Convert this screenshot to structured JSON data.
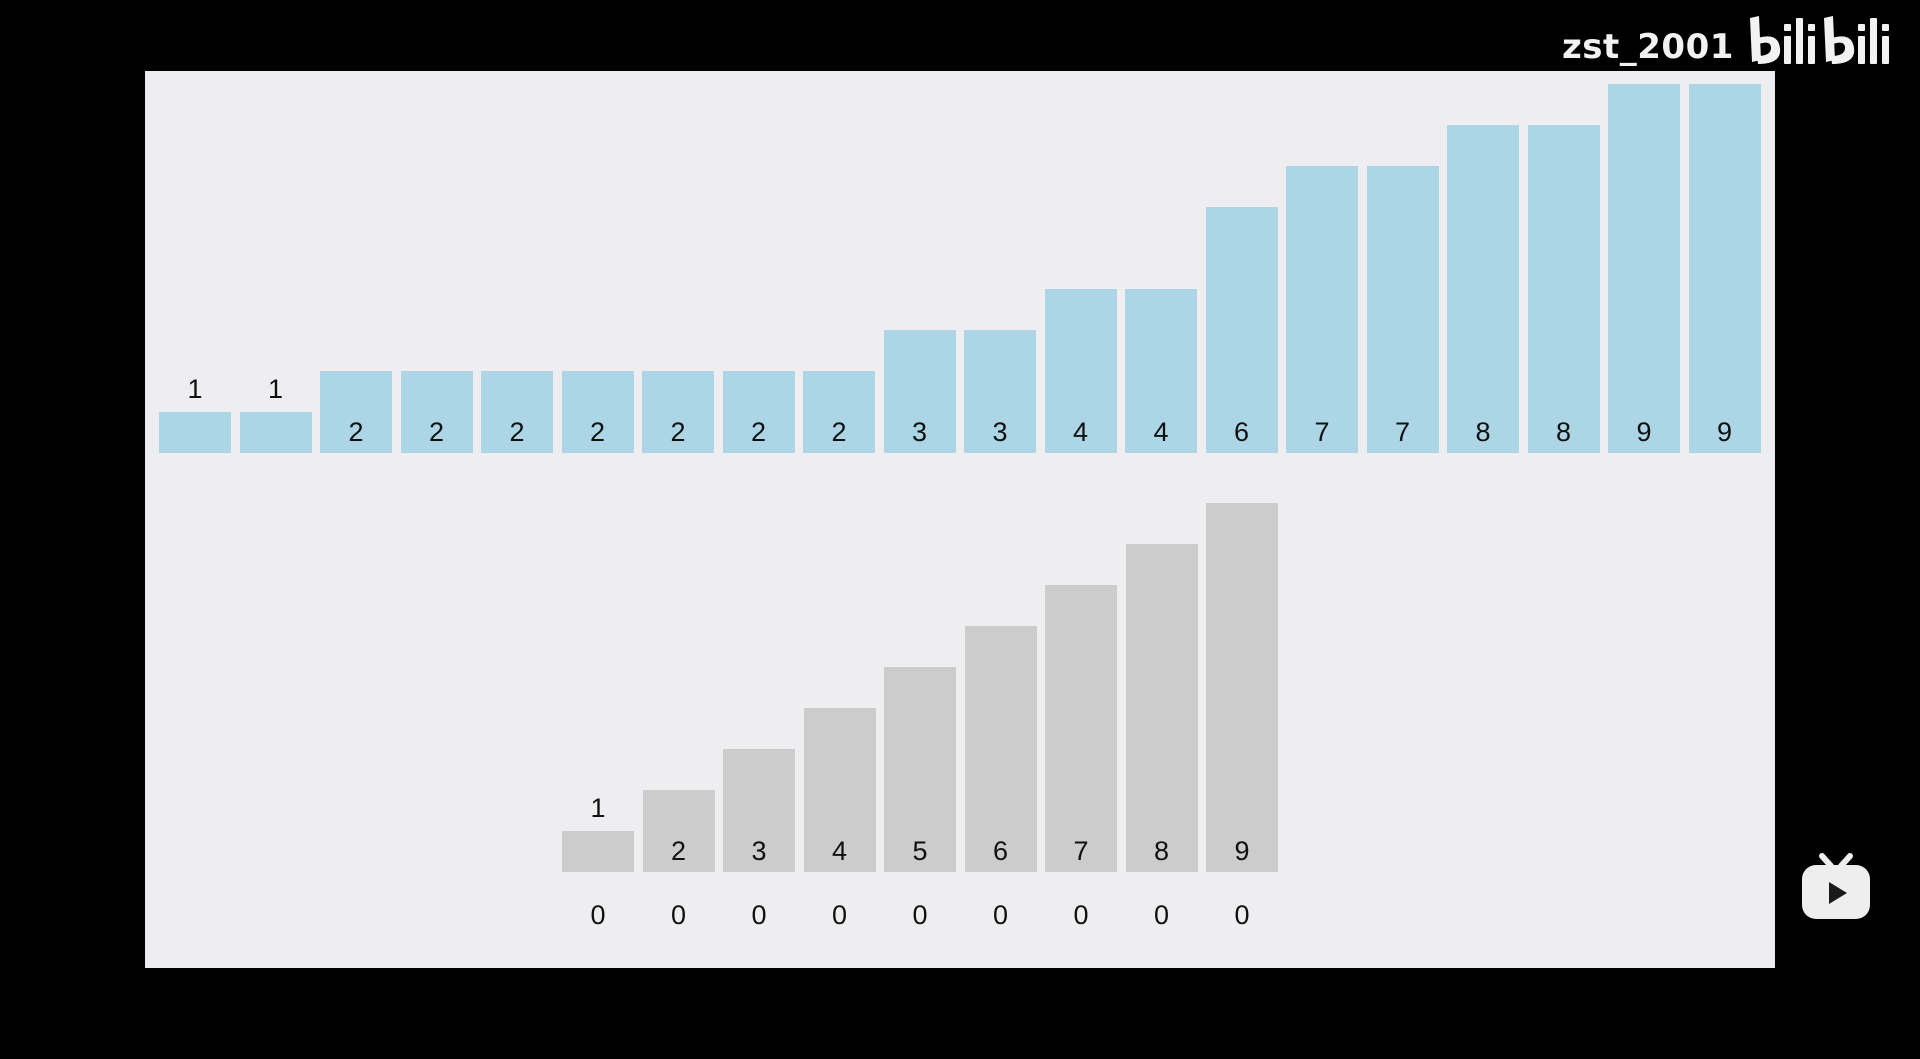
{
  "watermark": {
    "username": "zst_2001",
    "logo_icon": "bilibili-logo-icon",
    "logo_text": "bilibili"
  },
  "player_icon": "bilibili-tv-play-icon",
  "colors": {
    "page_background": "#000000",
    "stage_background": "#eeeef0",
    "top_bar": "#acd5e6",
    "bottom_bar": "#cccccd",
    "label": "#111111",
    "watermark": "#f2f2f2"
  },
  "chart_data": [
    {
      "type": "bar",
      "values": [
        1,
        1,
        2,
        2,
        2,
        2,
        2,
        2,
        2,
        3,
        3,
        4,
        4,
        6,
        7,
        7,
        8,
        8,
        9,
        9
      ],
      "labels": [
        "1",
        "1",
        "2",
        "2",
        "2",
        "2",
        "2",
        "2",
        "2",
        "3",
        "3",
        "4",
        "4",
        "6",
        "7",
        "7",
        "8",
        "8",
        "9",
        "9"
      ],
      "color": "#acd5e6",
      "ylim": [
        0,
        9
      ]
    },
    {
      "type": "bar",
      "values": [
        1,
        2,
        3,
        4,
        5,
        6,
        7,
        8,
        9
      ],
      "labels": [
        "1",
        "2",
        "3",
        "4",
        "5",
        "6",
        "7",
        "8",
        "9"
      ],
      "counts": [
        "0",
        "0",
        "0",
        "0",
        "0",
        "0",
        "0",
        "0",
        "0"
      ],
      "color": "#cccccd",
      "ylim": [
        0,
        9
      ]
    }
  ]
}
